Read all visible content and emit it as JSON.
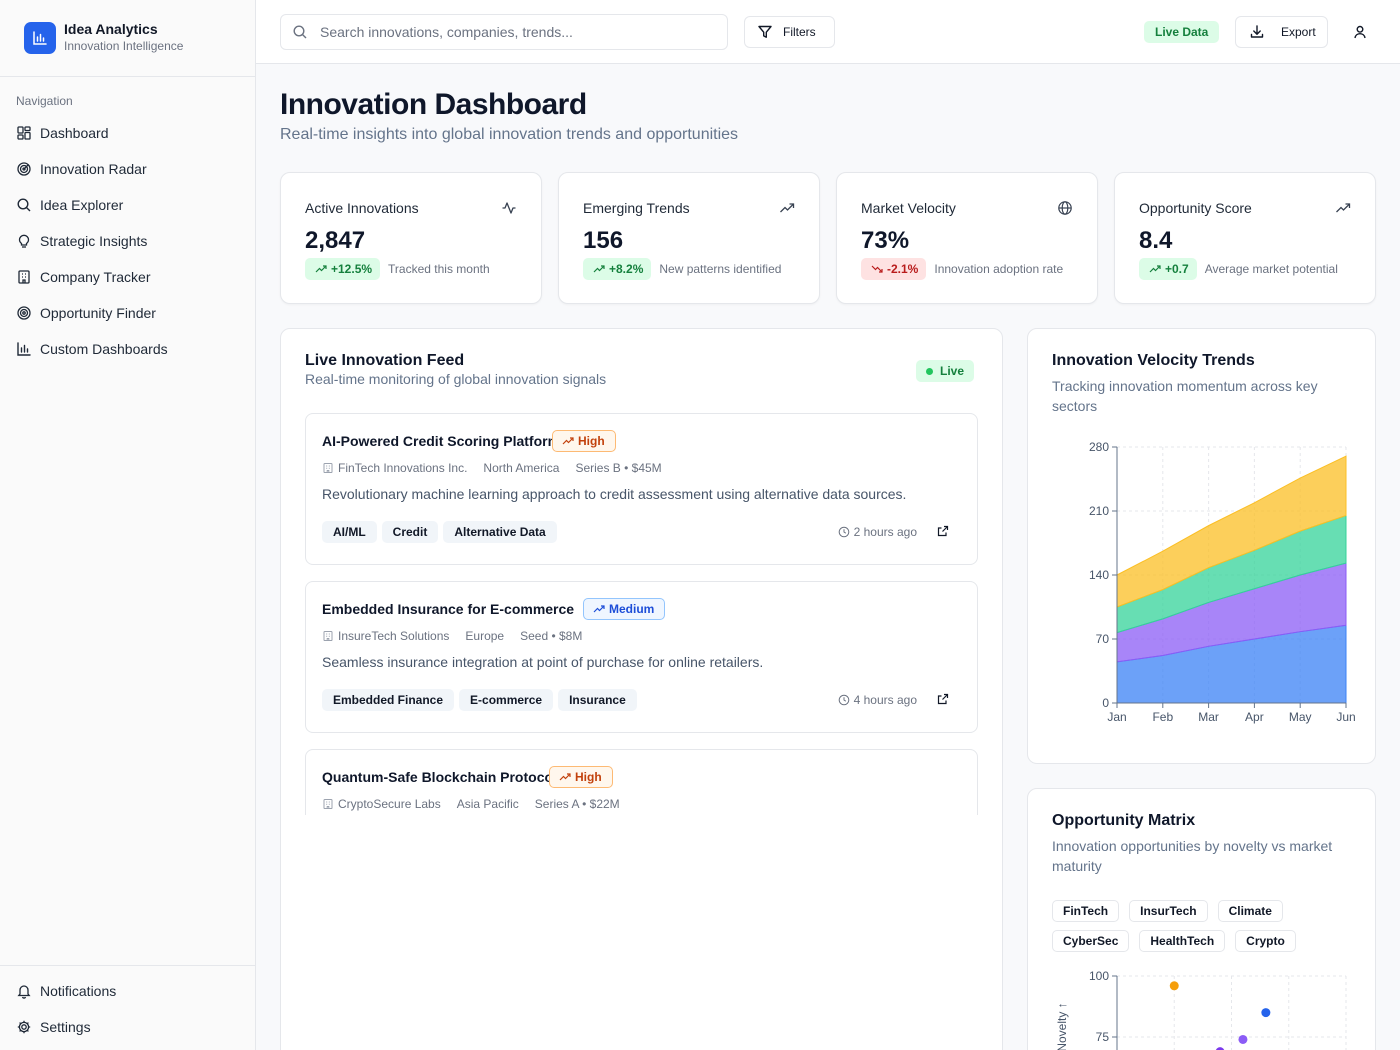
{
  "app": {
    "name": "Idea Analytics",
    "tagline": "Innovation Intelligence"
  },
  "sidebar": {
    "section_label": "Navigation",
    "items": [
      {
        "label": "Dashboard",
        "icon": "dashboard-grid-icon"
      },
      {
        "label": "Innovation Radar",
        "icon": "radar-icon"
      },
      {
        "label": "Idea Explorer",
        "icon": "search-icon"
      },
      {
        "label": "Strategic Insights",
        "icon": "lightbulb-icon"
      },
      {
        "label": "Company Tracker",
        "icon": "building-icon"
      },
      {
        "label": "Opportunity Finder",
        "icon": "target-icon"
      },
      {
        "label": "Custom Dashboards",
        "icon": "bar-chart-icon"
      }
    ],
    "bottom": [
      {
        "label": "Notifications",
        "icon": "bell-icon"
      },
      {
        "label": "Settings",
        "icon": "gear-icon"
      }
    ]
  },
  "topbar": {
    "search_placeholder": "Search innovations, companies, trends...",
    "filters_label": "Filters",
    "live_label": "Live Data",
    "export_label": "Export"
  },
  "header": {
    "title": "Innovation Dashboard",
    "subtitle": "Real-time insights into global innovation trends and opportunities"
  },
  "stats": [
    {
      "title": "Active Innovations",
      "value": "2,847",
      "delta": "+12.5%",
      "trend": "up",
      "note": "Tracked this month",
      "icon": "activity-icon"
    },
    {
      "title": "Emerging Trends",
      "value": "156",
      "delta": "+8.2%",
      "trend": "up",
      "note": "New patterns identified",
      "icon": "trending-up-icon"
    },
    {
      "title": "Market Velocity",
      "value": "73%",
      "delta": "-2.1%",
      "trend": "down",
      "note": "Innovation adoption rate",
      "icon": "globe-icon"
    },
    {
      "title": "Opportunity Score",
      "value": "8.4",
      "delta": "+0.7",
      "trend": "up",
      "note": "Average market potential",
      "icon": "trending-up-icon"
    }
  ],
  "feed": {
    "title": "Live Innovation Feed",
    "subtitle": "Real-time monitoring of global innovation signals",
    "live_label": "Live",
    "items": [
      {
        "title": "AI-Powered Credit Scoring Platform",
        "priority": "High",
        "company": "FinTech Innovations Inc.",
        "region": "North America",
        "funding": "Series B • $45M",
        "description": "Revolutionary machine learning approach to credit assessment using alternative data sources.",
        "tags": [
          "AI/ML",
          "Credit",
          "Alternative Data"
        ],
        "time": "2 hours ago"
      },
      {
        "title": "Embedded Insurance for E-commerce",
        "priority": "Medium",
        "company": "InsureTech Solutions",
        "region": "Europe",
        "funding": "Seed • $8M",
        "description": "Seamless insurance integration at point of purchase for online retailers.",
        "tags": [
          "Embedded Finance",
          "E-commerce",
          "Insurance"
        ],
        "time": "4 hours ago"
      },
      {
        "title": "Quantum-Safe Blockchain Protocol",
        "priority": "High",
        "company": "CryptoSecure Labs",
        "region": "Asia Pacific",
        "funding": "Series A • $22M",
        "description": "",
        "tags": [],
        "time": ""
      }
    ]
  },
  "velocity": {
    "title": "Innovation Velocity Trends",
    "subtitle": "Tracking innovation momentum across key sectors",
    "chart_data": {
      "type": "area",
      "stacked": true,
      "categories": [
        "Jan",
        "Feb",
        "Mar",
        "Apr",
        "May",
        "Jun"
      ],
      "yticks": [
        0,
        70,
        140,
        210,
        280
      ],
      "ylim": [
        0,
        280
      ],
      "grid": true,
      "series": [
        {
          "values": [
            45,
            52,
            62,
            70,
            78,
            85
          ],
          "color": "#3b82f6"
        },
        {
          "values": [
            32,
            40,
            48,
            55,
            62,
            68
          ],
          "color": "#8b5cf6"
        },
        {
          "values": [
            28,
            32,
            38,
            42,
            48,
            52
          ],
          "color": "#34d399"
        },
        {
          "values": [
            35,
            42,
            46,
            52,
            58,
            65
          ],
          "color": "#fbbf24"
        }
      ]
    }
  },
  "matrix": {
    "title": "Opportunity Matrix",
    "subtitle": "Innovation opportunities by novelty vs market maturity",
    "filters": [
      "FinTech",
      "InsurTech",
      "Climate",
      "CyberSec",
      "HealthTech",
      "Crypto"
    ],
    "chart_data": {
      "type": "scatter",
      "ylabel": "Novelty",
      "yticks": [
        75,
        100
      ],
      "ylim": [
        50,
        100
      ],
      "xlim": [
        0,
        100
      ],
      "points": [
        {
          "x": 25,
          "y": 96,
          "color": "#f59e0b"
        },
        {
          "x": 65,
          "y": 85,
          "color": "#2563eb"
        },
        {
          "x": 55,
          "y": 74,
          "color": "#8b5cf6"
        },
        {
          "x": 45,
          "y": 69,
          "color": "#7c3aed"
        }
      ]
    }
  }
}
